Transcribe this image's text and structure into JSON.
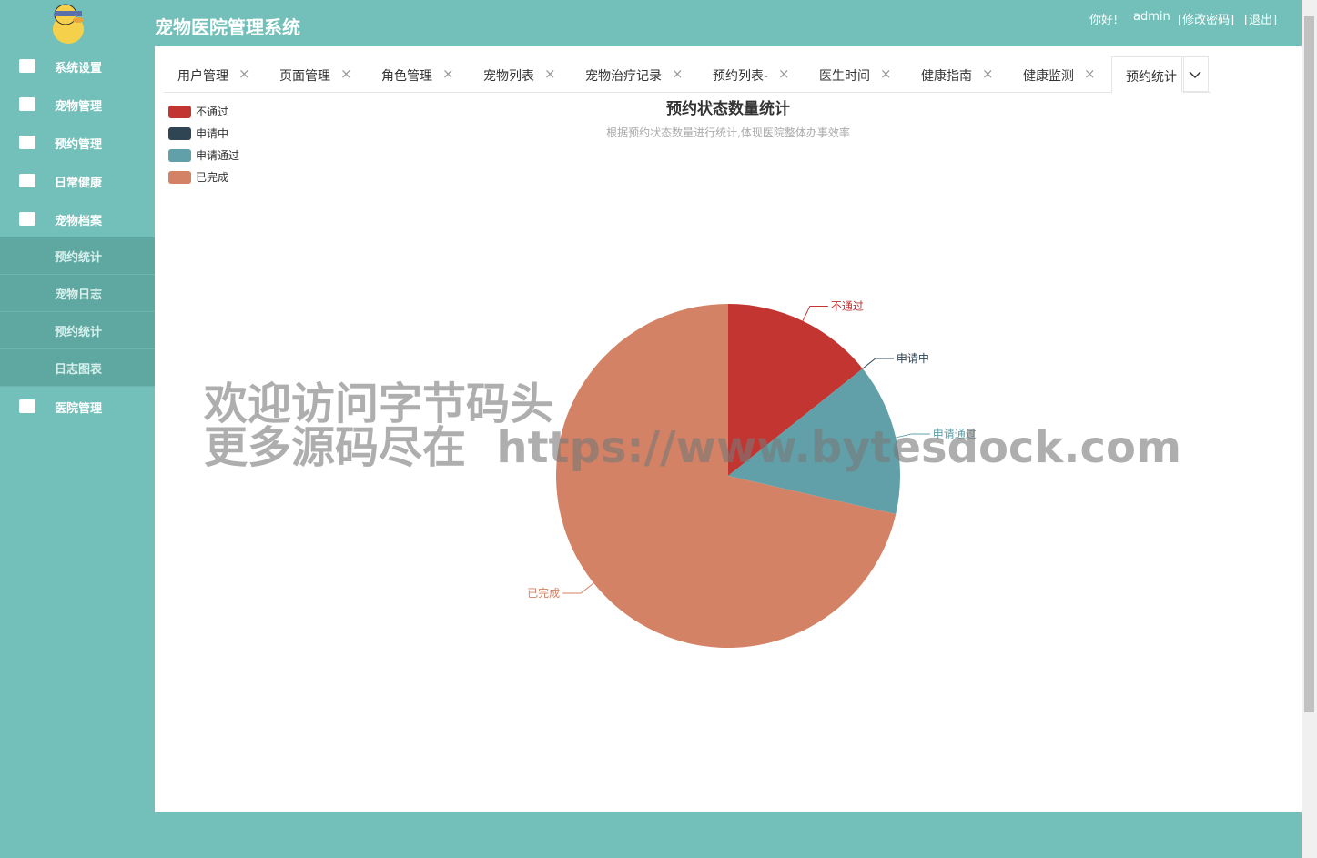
{
  "header": {
    "title": "宠物医院管理系统",
    "greeting": "你好!",
    "user": "admin",
    "change_password": "[修改密码]",
    "logout": "[退出]"
  },
  "sidebar": {
    "menu": [
      "系统设置",
      "宠物管理",
      "预约管理",
      "日常健康",
      "宠物档案"
    ],
    "submenu": [
      "预约统计",
      "宠物日志",
      "预约统计",
      "日志图表"
    ],
    "menu_after": [
      "医院管理"
    ]
  },
  "tabs": [
    "用户管理",
    "页面管理",
    "角色管理",
    "宠物列表",
    "宠物治疗记录",
    "预约列表-",
    "医生时间",
    "健康指南",
    "健康监测",
    "预约统计"
  ],
  "watermark": [
    "欢迎访问字节码头",
    "更多源码尽在  https://www.bytesdock.com"
  ],
  "chart_data": {
    "type": "pie",
    "title": "预约状态数量统计",
    "subtitle": "根据预约状态数量进行统计,体现医院整体办事效率",
    "categories": [
      "不通过",
      "申请中",
      "申请通过",
      "已完成"
    ],
    "values": [
      1,
      0,
      1,
      5
    ],
    "colors": [
      "#c23531",
      "#2f4554",
      "#61a0a8",
      "#d48265"
    ],
    "legend": "top-left"
  }
}
